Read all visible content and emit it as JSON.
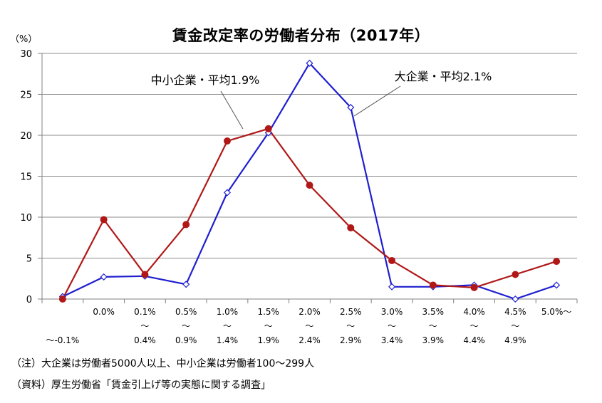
{
  "title": "賃金改定率の労働者分布（2017年）",
  "y_unit": "（%）",
  "notes": {
    "note1": "（注）大企業は労働者5000人以上、中小企業は労働者100〜299人",
    "note2": "（資料）厚生労働省「賃金引上げ等の実態に関する調査」"
  },
  "chart_data": {
    "type": "line",
    "title": "賃金改定率の労働者分布（2017年）",
    "ylabel": "（%）",
    "ylim": [
      0,
      30
    ],
    "yticks": [
      0,
      5,
      10,
      15,
      20,
      25,
      30
    ],
    "grid": true,
    "categories": [
      [
        "",
        "",
        "〜-0.1%"
      ],
      [
        "0.0%",
        "",
        ""
      ],
      [
        "0.1%",
        "〜",
        "0.4%"
      ],
      [
        "0.5%",
        "〜",
        "0.9%"
      ],
      [
        "1.0%",
        "〜",
        "1.4%"
      ],
      [
        "1.5%",
        "〜",
        "1.9%"
      ],
      [
        "2.0%",
        "〜",
        "2.4%"
      ],
      [
        "2.5%",
        "〜",
        "2.9%"
      ],
      [
        "3.0%",
        "〜",
        "3.4%"
      ],
      [
        "3.5%",
        "〜",
        "3.9%"
      ],
      [
        "4.0%",
        "〜",
        "4.4%"
      ],
      [
        "4.5%",
        "〜",
        "4.9%"
      ],
      [
        "5.0%〜",
        "",
        ""
      ]
    ],
    "series": [
      {
        "name": "大企業・平均2.1%",
        "color": "#1f1fd0",
        "marker": "diamond-open",
        "values": [
          0.3,
          2.7,
          2.8,
          1.8,
          13.0,
          20.3,
          28.8,
          23.4,
          1.5,
          1.5,
          1.7,
          0.0,
          1.7
        ]
      },
      {
        "name": "中小企業・平均1.9%",
        "color": "#b01818",
        "marker": "circle-filled",
        "values": [
          0.0,
          9.7,
          3.0,
          9.1,
          19.3,
          20.8,
          13.9,
          8.7,
          4.7,
          1.7,
          1.4,
          3.0,
          4.6
        ]
      }
    ]
  }
}
